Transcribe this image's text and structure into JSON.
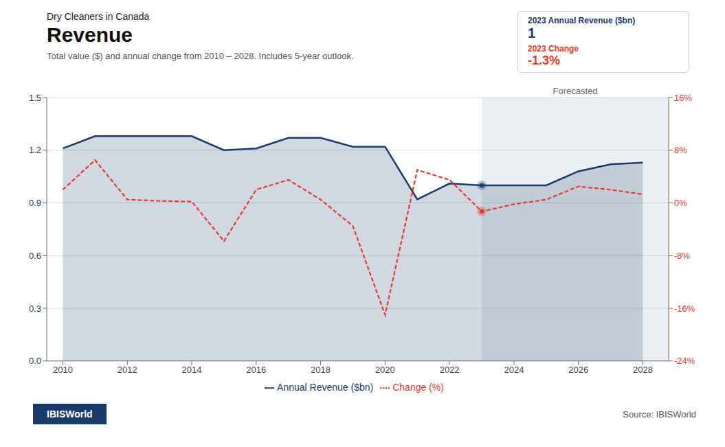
{
  "chart_data": {
    "type": "line",
    "supertitle": "Dry Cleaners in Canada",
    "title": "Revenue",
    "subtitle": "Total value ($) and annual change from 2010 – 2028. Includes 5-year outlook.",
    "x": [
      2010,
      2011,
      2012,
      2013,
      2014,
      2015,
      2016,
      2017,
      2018,
      2019,
      2020,
      2021,
      2022,
      2023,
      2024,
      2025,
      2026,
      2027,
      2028
    ],
    "series": [
      {
        "name": "Annual Revenue ($bn)",
        "type": "area",
        "color": "#1a3a6b",
        "values": [
          1.21,
          1.28,
          1.28,
          1.28,
          1.28,
          1.2,
          1.21,
          1.27,
          1.27,
          1.22,
          1.22,
          0.92,
          1.01,
          1.0,
          1.0,
          1.0,
          1.08,
          1.12,
          1.13
        ]
      },
      {
        "name": "Change (%)",
        "type": "line",
        "axis": "y2",
        "color": "#e8392a",
        "line_style": "dashed",
        "values": [
          2.0,
          6.5,
          0.5,
          0.3,
          0.2,
          -5.8,
          2.0,
          3.5,
          0.5,
          -3.5,
          -17.0,
          5.0,
          3.5,
          -1.3,
          -0.2,
          0.5,
          2.5,
          2.0,
          1.3
        ]
      }
    ],
    "xlim": [
      2009.5,
      2028.8
    ],
    "xticks": [
      2010,
      2012,
      2014,
      2016,
      2018,
      2020,
      2022,
      2024,
      2026,
      2028
    ],
    "ylim": [
      0,
      1.5
    ],
    "yticks": [
      {
        "value": 0,
        "label": "0.0"
      },
      0.3,
      0.6,
      0.9,
      1.2,
      1.5
    ],
    "y2lim": [
      -24,
      16
    ],
    "y2ticks": [
      {
        "value": -24,
        "label": "-24%"
      },
      {
        "value": -16,
        "label": "-16%"
      },
      {
        "value": -8,
        "label": "-8%"
      },
      {
        "value": 0,
        "label": "0%"
      },
      {
        "value": 8,
        "label": "8%"
      },
      {
        "value": 16,
        "label": "16%"
      }
    ],
    "grid": true,
    "legend": "bottom",
    "forecast": {
      "x_start": 2023,
      "label": "Forecasted"
    },
    "callout": {
      "x": 2023,
      "revenue_label": "2023 Annual Revenue ($bn)",
      "revenue_value": "1",
      "change_label": "2023 Change",
      "change_value": "-1.3%"
    },
    "source": "Source: IBISWorld",
    "badge": "IBISWorld"
  }
}
